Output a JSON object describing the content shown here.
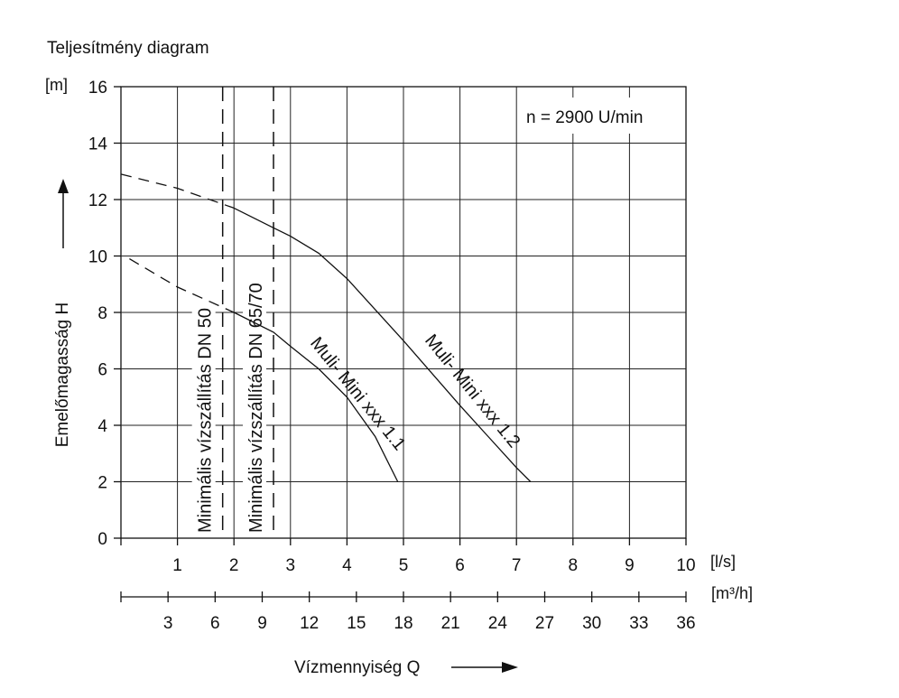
{
  "chart_data": {
    "type": "line",
    "title": "Teljesítmény diagram",
    "annotation": "n = 2900 U/min",
    "y_unit": "[m]",
    "ylabel": "Emelőmagasság H",
    "xlabel": "Vízmennyiség Q",
    "x_unit": "[l/s]",
    "x2_unit": "[m³/h]",
    "xlim": [
      0,
      10
    ],
    "ylim": [
      0,
      16
    ],
    "grid": true,
    "y_ticks": [
      "0",
      "2",
      "4",
      "6",
      "8",
      "10",
      "12",
      "14",
      "16"
    ],
    "x_ticks": [
      "1",
      "2",
      "3",
      "4",
      "5",
      "6",
      "7",
      "8",
      "9",
      "10"
    ],
    "x2_ticks": [
      "3",
      "6",
      "9",
      "12",
      "15",
      "18",
      "21",
      "24",
      "27",
      "30",
      "33",
      "36"
    ],
    "min_flow_lines": [
      {
        "label": "Minimális vízszállítás DN 50",
        "q": 1.8
      },
      {
        "label": "Minimális vízszállítás DN 65/70",
        "q": 2.7
      }
    ],
    "series": [
      {
        "name": "Muli- Mini xxx 1.1",
        "dashed_until": 2.6,
        "x": [
          0.15,
          1.0,
          2.0,
          2.7,
          3.0,
          3.5,
          4.0,
          4.5,
          4.9
        ],
        "y": [
          9.9,
          8.9,
          8.0,
          7.3,
          6.8,
          6.0,
          5.0,
          3.6,
          2.0
        ]
      },
      {
        "name": "Muli- Mini xxx 1.2",
        "dashed_until": 2.6,
        "x": [
          0.0,
          1.0,
          2.0,
          2.7,
          3.0,
          3.5,
          4.0,
          5.0,
          6.0,
          6.5,
          7.0,
          7.25
        ],
        "y": [
          12.9,
          12.4,
          11.7,
          11.0,
          10.7,
          10.1,
          9.2,
          7.0,
          4.7,
          3.6,
          2.5,
          2.0
        ]
      }
    ]
  }
}
